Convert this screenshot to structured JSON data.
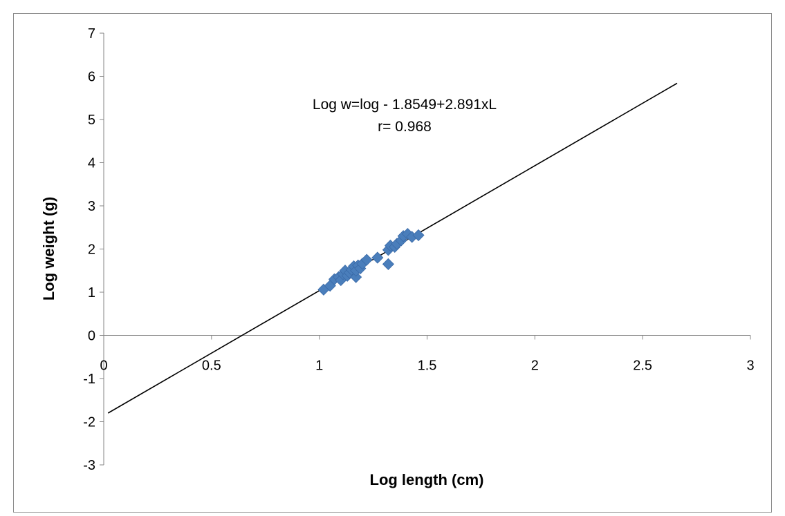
{
  "chart_data": {
    "type": "scatter",
    "title": "",
    "xlabel": "Log length (cm)",
    "ylabel": "Log weight (g)",
    "xlim": [
      0,
      3
    ],
    "ylim": [
      -3,
      7
    ],
    "x_ticks": [
      0,
      0.5,
      1,
      1.5,
      2,
      2.5,
      3
    ],
    "x_tick_labels": [
      "0",
      "0.5",
      "1",
      "1.5",
      "2",
      "2.5",
      "3"
    ],
    "y_ticks": [
      7,
      6,
      5,
      4,
      3,
      2,
      1,
      0,
      -1,
      -2,
      -3
    ],
    "y_tick_labels": [
      "7",
      "6",
      "5",
      "4",
      "3",
      "2",
      "1",
      "0",
      "-1",
      "-2",
      "-3"
    ],
    "grid": false,
    "legend": "none",
    "marker": "diamond",
    "marker_color": "#4a7ebb",
    "line_color": "#000000",
    "points": [
      {
        "x": 1.02,
        "y": 1.06
      },
      {
        "x": 1.05,
        "y": 1.15
      },
      {
        "x": 1.07,
        "y": 1.3
      },
      {
        "x": 1.09,
        "y": 1.35
      },
      {
        "x": 1.1,
        "y": 1.28
      },
      {
        "x": 1.11,
        "y": 1.42
      },
      {
        "x": 1.12,
        "y": 1.5
      },
      {
        "x": 1.13,
        "y": 1.38
      },
      {
        "x": 1.14,
        "y": 1.45
      },
      {
        "x": 1.15,
        "y": 1.52
      },
      {
        "x": 1.16,
        "y": 1.6
      },
      {
        "x": 1.17,
        "y": 1.35
      },
      {
        "x": 1.17,
        "y": 1.5
      },
      {
        "x": 1.18,
        "y": 1.62
      },
      {
        "x": 1.19,
        "y": 1.55
      },
      {
        "x": 1.2,
        "y": 1.66
      },
      {
        "x": 1.22,
        "y": 1.75
      },
      {
        "x": 1.27,
        "y": 1.8
      },
      {
        "x": 1.32,
        "y": 1.65
      },
      {
        "x": 1.32,
        "y": 1.98
      },
      {
        "x": 1.33,
        "y": 2.08
      },
      {
        "x": 1.35,
        "y": 2.05
      },
      {
        "x": 1.36,
        "y": 2.12
      },
      {
        "x": 1.38,
        "y": 2.2
      },
      {
        "x": 1.39,
        "y": 2.3
      },
      {
        "x": 1.41,
        "y": 2.35
      },
      {
        "x": 1.43,
        "y": 2.28
      },
      {
        "x": 1.46,
        "y": 2.32
      }
    ],
    "trendline": {
      "x": [
        0.02,
        2.66
      ],
      "y": [
        -1.8,
        5.84
      ]
    },
    "annotations": [
      "Log w=log - 1.8549+2.891xL",
      "r= 0.968"
    ]
  }
}
